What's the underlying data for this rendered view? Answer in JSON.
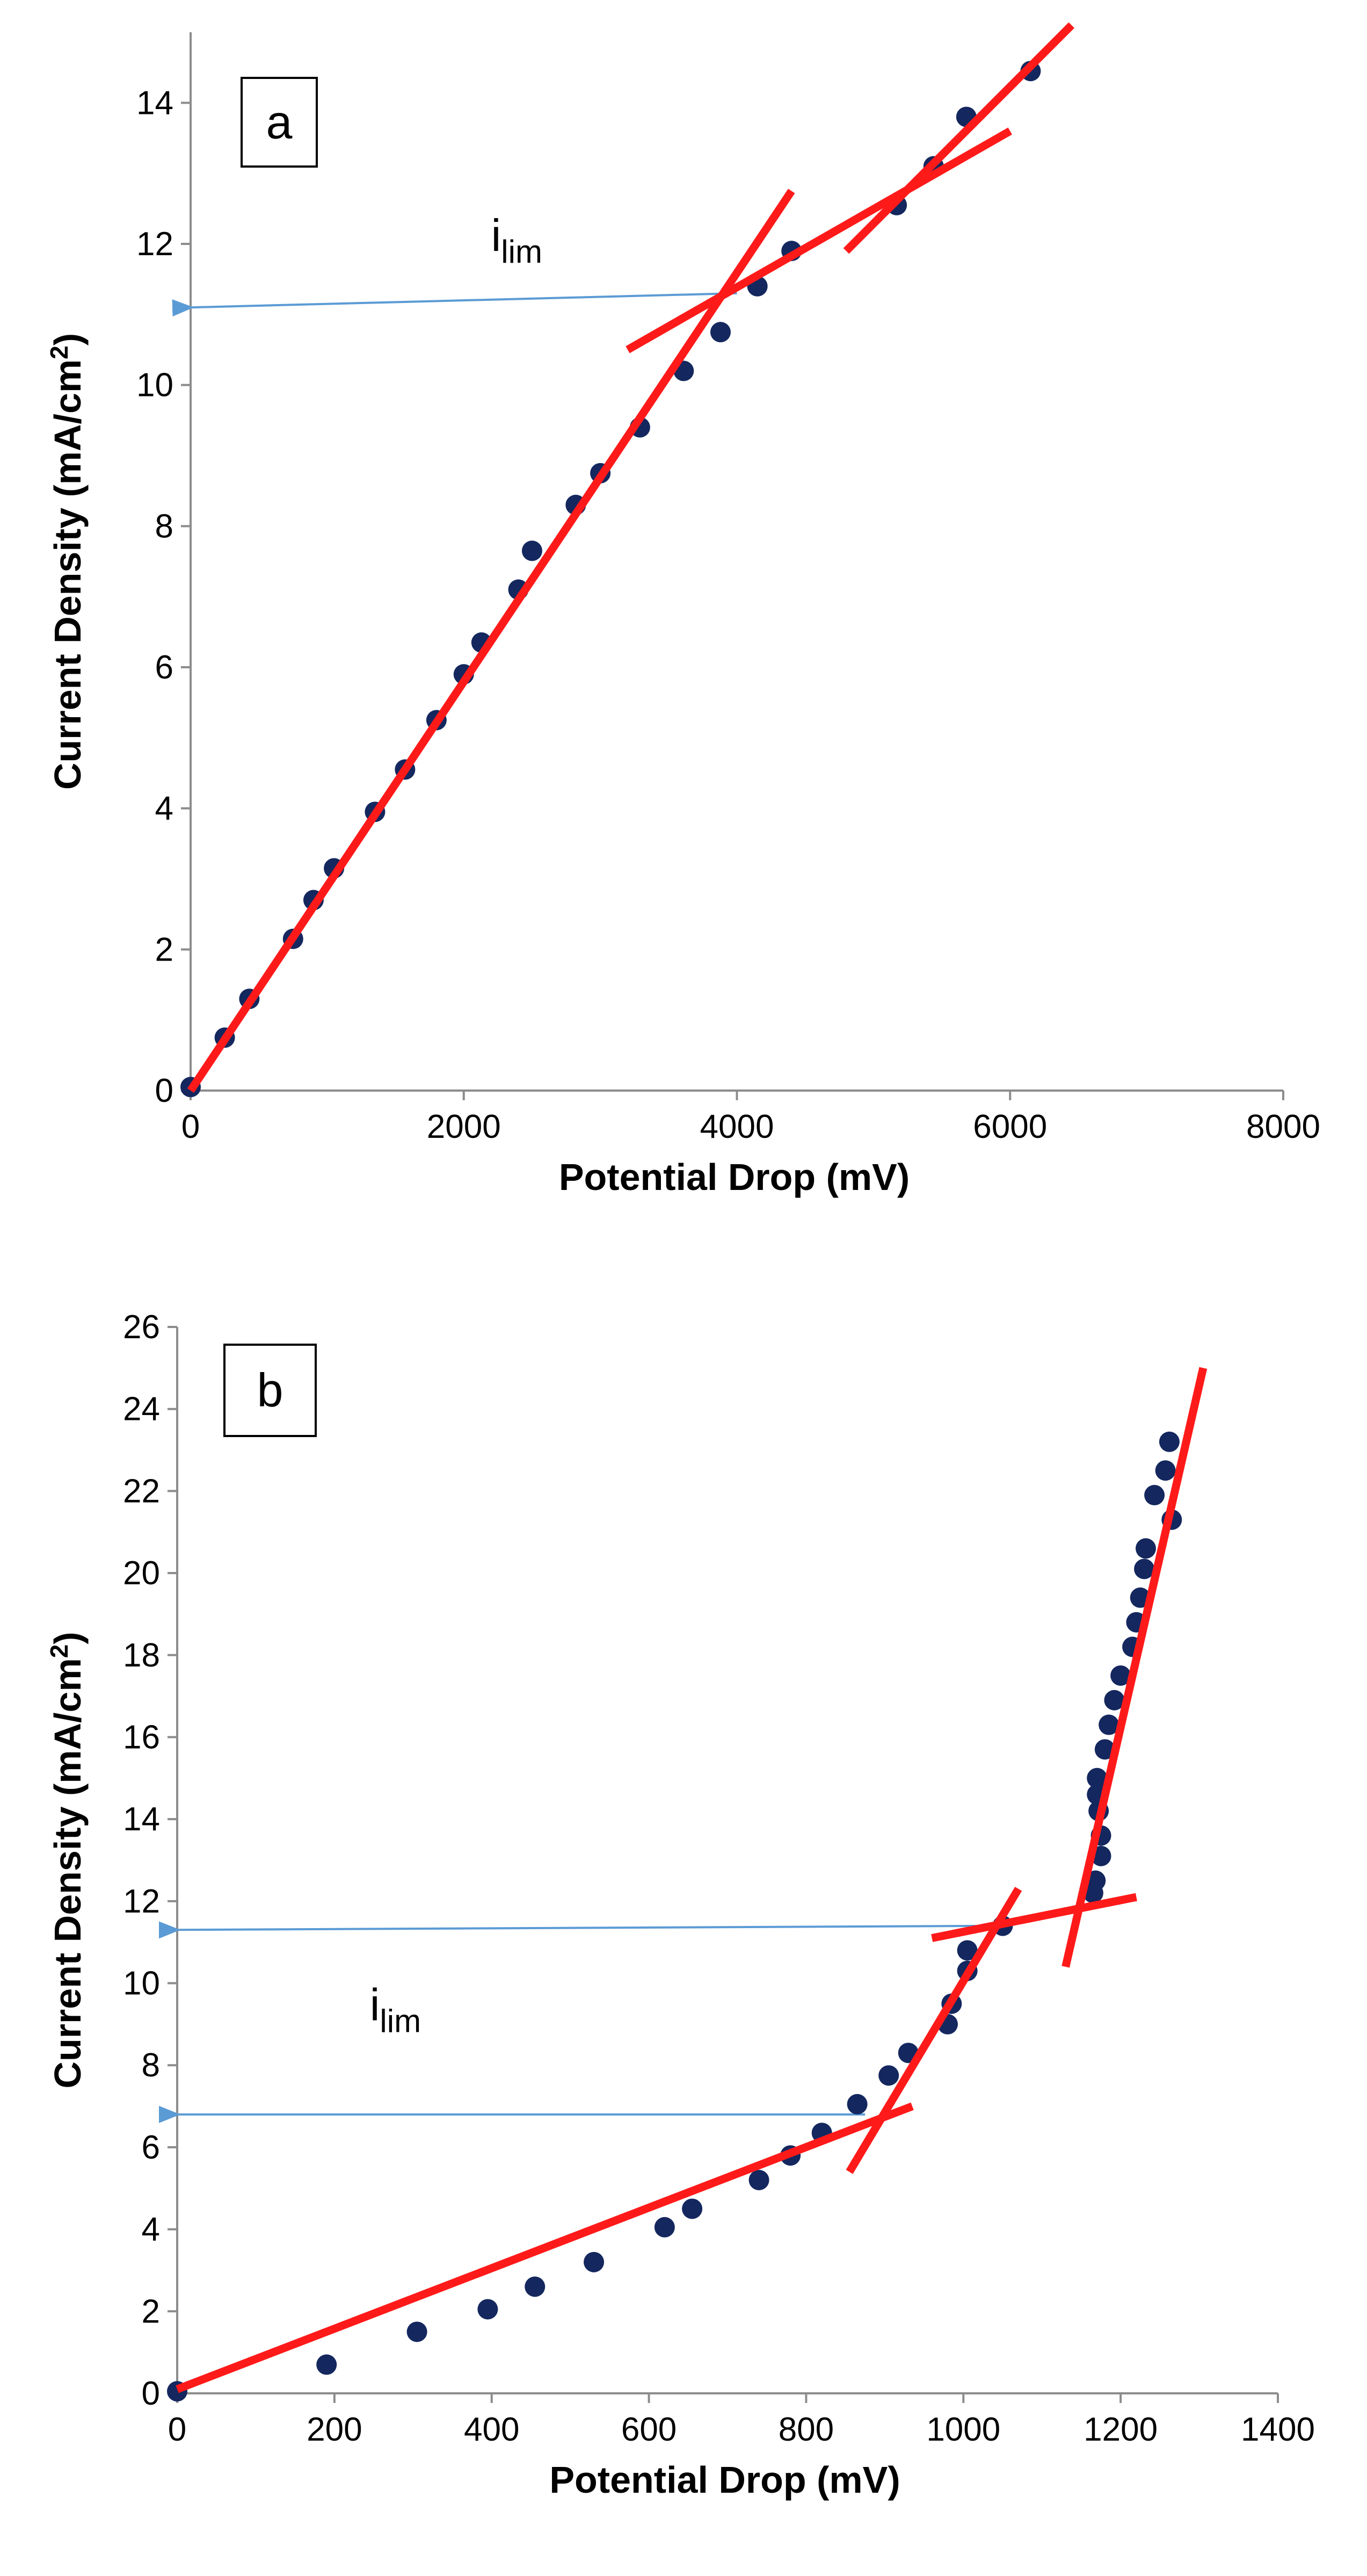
{
  "chart_data": [
    {
      "type": "scatter",
      "panel_label": "a",
      "xlabel": "Potential Drop (mV)",
      "ylabel_main": "Current Density (mA/cm",
      "ylabel_sup": "2",
      "ylabel_end": ")",
      "xlim": [
        0,
        8000
      ],
      "ylim": [
        0,
        15
      ],
      "xticks": [
        0,
        2000,
        4000,
        6000,
        8000
      ],
      "xtick_labels": [
        "0",
        "2000",
        "4000",
        "6000",
        "8000"
      ],
      "yticks": [
        0,
        2,
        4,
        6,
        8,
        10,
        12,
        14
      ],
      "ytick_labels": [
        "0",
        "2",
        "4",
        "6",
        "8",
        "10",
        "12",
        "14"
      ],
      "annotation": {
        "text": "i",
        "subscript": "lim",
        "x": 2200,
        "y": 11.9,
        "arrow_from": [
          4000,
          11.3
        ],
        "arrow_to": [
          0,
          11.1
        ]
      },
      "colors": {
        "points": "#14275e",
        "fit": "#ff1a1a",
        "arrow": "#5b9bd5"
      },
      "series": [
        {
          "name": "data",
          "points": [
            [
              0,
              0.05
            ],
            [
              250,
              0.75
            ],
            [
              430,
              1.3
            ],
            [
              750,
              2.15
            ],
            [
              900,
              2.7
            ],
            [
              1050,
              3.15
            ],
            [
              1350,
              3.95
            ],
            [
              1570,
              4.55
            ],
            [
              1800,
              5.25
            ],
            [
              2000,
              5.9
            ],
            [
              2130,
              6.35
            ],
            [
              2400,
              7.1
            ],
            [
              2500,
              7.65
            ],
            [
              2820,
              8.3
            ],
            [
              3000,
              8.75
            ],
            [
              3290,
              9.4
            ],
            [
              3610,
              10.2
            ],
            [
              3880,
              10.75
            ],
            [
              4150,
              11.4
            ],
            [
              4400,
              11.9
            ],
            [
              5170,
              12.55
            ],
            [
              5440,
              13.1
            ],
            [
              5680,
              13.8
            ],
            [
              6150,
              14.45
            ]
          ]
        }
      ],
      "fit_lines": [
        {
          "name": "fit-1",
          "x": [
            0,
            4400
          ],
          "y": [
            0,
            12.75
          ]
        },
        {
          "name": "fit-2",
          "x": [
            3200,
            6000
          ],
          "y": [
            10.5,
            13.6
          ]
        },
        {
          "name": "fit-3",
          "x": [
            4800,
            6450
          ],
          "y": [
            11.9,
            15.1
          ]
        }
      ]
    },
    {
      "type": "scatter",
      "panel_label": "b",
      "xlabel": "Potential Drop (mV)",
      "ylabel_main": "Current Density (mA/cm",
      "ylabel_sup": "2",
      "ylabel_end": ")",
      "xlim": [
        0,
        1400
      ],
      "ylim": [
        0,
        26
      ],
      "xticks": [
        0,
        200,
        400,
        600,
        800,
        1000,
        1200,
        1400
      ],
      "xtick_labels": [
        "0",
        "200",
        "400",
        "600",
        "800",
        "1000",
        "1200",
        "1400"
      ],
      "yticks": [
        0,
        2,
        4,
        6,
        8,
        10,
        12,
        14,
        16,
        18,
        20,
        22,
        24,
        26
      ],
      "ytick_labels": [
        "0",
        "2",
        "4",
        "6",
        "8",
        "10",
        "12",
        "14",
        "16",
        "18",
        "20",
        "22",
        "24",
        "26"
      ],
      "annotation": {
        "text": "i",
        "subscript": "lim",
        "x": 245,
        "y": 9.1
      },
      "arrows": [
        {
          "from": [
            1050,
            11.4
          ],
          "to": [
            0,
            11.3
          ]
        },
        {
          "from": [
            875,
            6.8
          ],
          "to": [
            0,
            6.8
          ]
        }
      ],
      "colors": {
        "points": "#14275e",
        "fit": "#ff1a1a",
        "arrow": "#5b9bd5"
      },
      "series": [
        {
          "name": "data",
          "points": [
            [
              0,
              0.05
            ],
            [
              190,
              0.7
            ],
            [
              305,
              1.5
            ],
            [
              395,
              2.05
            ],
            [
              455,
              2.6
            ],
            [
              530,
              3.2
            ],
            [
              620,
              4.05
            ],
            [
              655,
              4.5
            ],
            [
              740,
              5.2
            ],
            [
              780,
              5.8
            ],
            [
              820,
              6.35
            ],
            [
              865,
              7.05
            ],
            [
              905,
              7.75
            ],
            [
              930,
              8.3
            ],
            [
              980,
              9.0
            ],
            [
              985,
              9.5
            ],
            [
              1005,
              10.3
            ],
            [
              1005,
              10.8
            ],
            [
              1050,
              11.4
            ],
            [
              1165,
              12.2
            ],
            [
              1168,
              12.5
            ],
            [
              1175,
              13.1
            ],
            [
              1175,
              13.6
            ],
            [
              1172,
              14.2
            ],
            [
              1170,
              14.6
            ],
            [
              1170,
              15.0
            ],
            [
              1180,
              15.7
            ],
            [
              1185,
              16.3
            ],
            [
              1192,
              16.9
            ],
            [
              1200,
              17.5
            ],
            [
              1215,
              18.2
            ],
            [
              1220,
              18.8
            ],
            [
              1225,
              19.4
            ],
            [
              1230,
              20.1
            ],
            [
              1232,
              20.6
            ],
            [
              1243,
              21.9
            ],
            [
              1265,
              21.3
            ],
            [
              1257,
              22.5
            ],
            [
              1262,
              23.2
            ]
          ]
        }
      ],
      "fit_lines": [
        {
          "name": "fit-1",
          "x": [
            0,
            935
          ],
          "y": [
            0.1,
            7.0
          ]
        },
        {
          "name": "fit-2",
          "x": [
            855,
            1070
          ],
          "y": [
            5.4,
            12.3
          ]
        },
        {
          "name": "fit-3",
          "x": [
            960,
            1220
          ],
          "y": [
            11.1,
            12.1
          ]
        },
        {
          "name": "fit-4",
          "x": [
            1130,
            1305
          ],
          "y": [
            10.4,
            25.0
          ]
        }
      ]
    }
  ]
}
